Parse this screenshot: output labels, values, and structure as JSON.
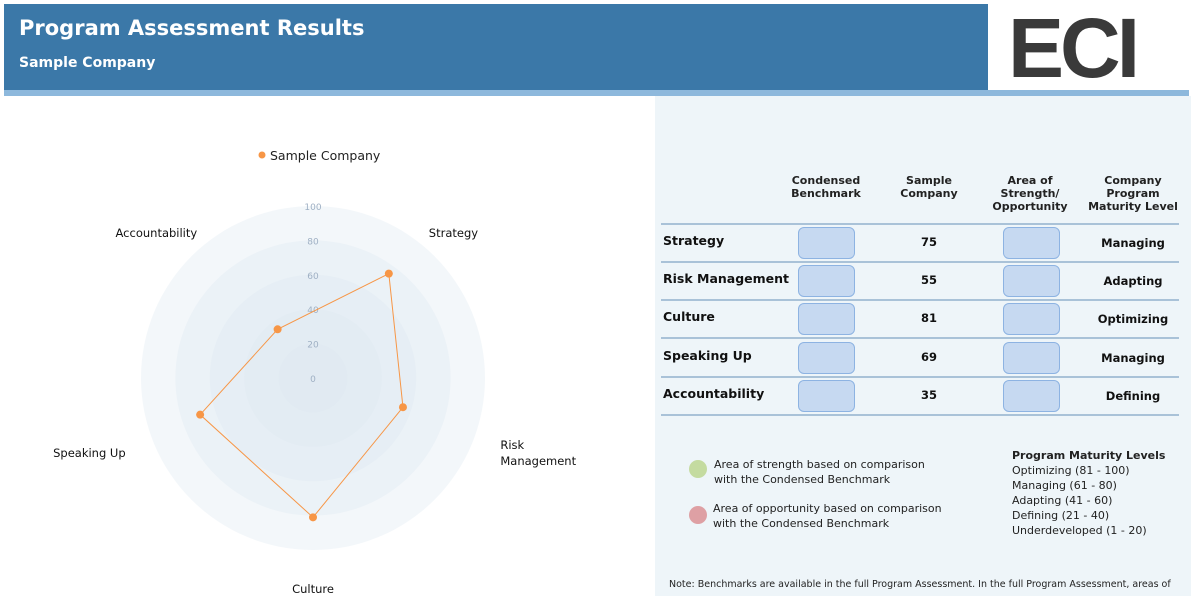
{
  "header": {
    "title": "Program Assessment Results",
    "subtitle": "Sample Company",
    "logo": "ECI"
  },
  "chart_data": {
    "type": "radar",
    "categories": [
      "Strategy",
      "Risk Management",
      "Culture",
      "Speaking Up",
      "Accountability"
    ],
    "series": [
      {
        "name": "Sample Company",
        "color": "#f79646",
        "values": [
          75,
          55,
          81,
          69,
          35
        ]
      }
    ],
    "rlim": [
      0,
      100
    ],
    "rticks": [
      0,
      20,
      40,
      60,
      80,
      100
    ],
    "legend": "top"
  },
  "table": {
    "columns": [
      "Condensed Benchmark",
      "Sample Company",
      "Area of Strength/ Opportunity",
      "Company Program Maturity Level"
    ],
    "maturity": [
      "Managing",
      "Adapting",
      "Optimizing",
      "Managing",
      "Defining"
    ]
  },
  "key": {
    "strength": "Area of strength based on comparison with the Condensed Benchmark",
    "opportunity": "Area of opportunity based on comparison with the Condensed Benchmark",
    "levels_title": "Program Maturity Levels",
    "levels": [
      "Optimizing (81 - 100)",
      "Managing (61 - 80)",
      "Adapting (41 - 60)",
      "Defining (21 - 40)",
      "Underdeveloped (1 - 20)"
    ]
  },
  "note": "Note: Benchmarks are available in the full Program Assessment. In the full Program Assessment, areas of"
}
